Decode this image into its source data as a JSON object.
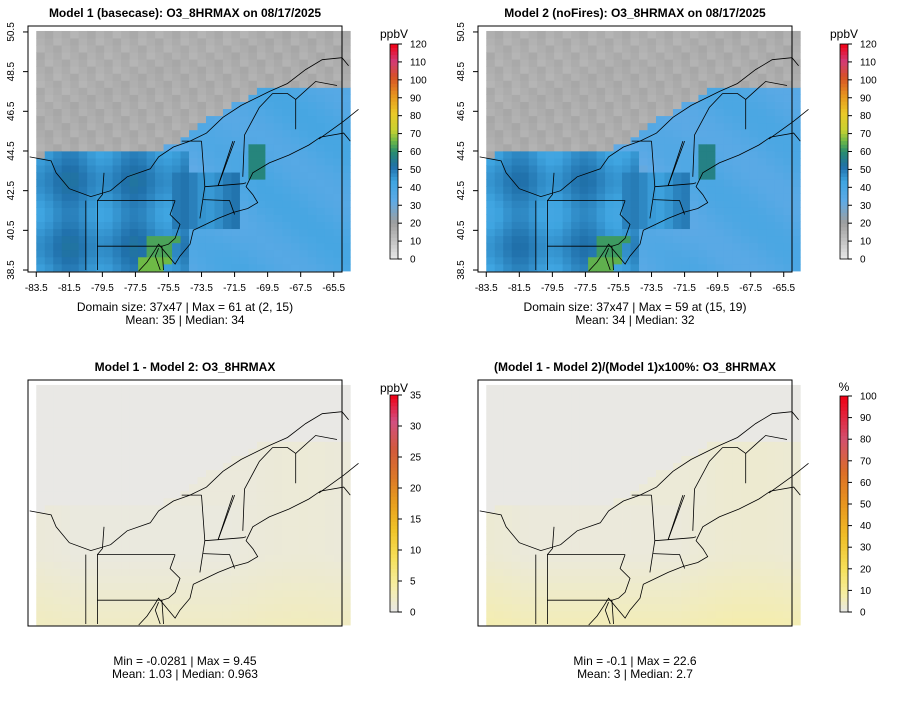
{
  "chart_data": [
    {
      "type": "heatmap",
      "title": "Model 1 (basecase): O3_8HRMAX on 08/17/2025",
      "variable": "O3_8HRMAX",
      "date": "08/17/2025",
      "xlabel": "",
      "ylabel": "",
      "xlim": [
        -84,
        -65
      ],
      "ylim": [
        38.4,
        50.8
      ],
      "x_ticks": [
        "-83.5",
        "-81.5",
        "-79.5",
        "-77.5",
        "-75.5",
        "-73.5",
        "-71.5",
        "-69.5",
        "-67.5",
        "-65.5"
      ],
      "y_ticks": [
        "38.5",
        "40.5",
        "42.5",
        "44.5",
        "46.5",
        "48.5",
        "50.5"
      ],
      "colorbar": {
        "unit": "ppbV",
        "min": 0,
        "max": 120,
        "step": 10,
        "labels": [
          "0",
          "10",
          "20",
          "30",
          "40",
          "50",
          "60",
          "70",
          "80",
          "90",
          "100",
          "110",
          "120"
        ]
      },
      "field": "o3",
      "stats_line1": "Domain size: 37x47 | Max = 61 at (2, 15)",
      "stats_line2": "Mean: 35 |  Median: 34",
      "domain_size": "37x47",
      "max": 61,
      "max_at": "(2, 15)",
      "mean": 35,
      "median": 34
    },
    {
      "type": "heatmap",
      "title": "Model 2 (noFires): O3_8HRMAX on 08/17/2025",
      "variable": "O3_8HRMAX",
      "date": "08/17/2025",
      "xlabel": "",
      "ylabel": "",
      "xlim": [
        -84,
        -65
      ],
      "ylim": [
        38.4,
        50.8
      ],
      "x_ticks": [
        "-83.5",
        "-81.5",
        "-79.5",
        "-77.5",
        "-75.5",
        "-73.5",
        "-71.5",
        "-69.5",
        "-67.5",
        "-65.5"
      ],
      "y_ticks": [
        "38.5",
        "40.5",
        "42.5",
        "44.5",
        "46.5",
        "48.5",
        "50.5"
      ],
      "colorbar": {
        "unit": "ppbV",
        "min": 0,
        "max": 120,
        "step": 10,
        "labels": [
          "0",
          "10",
          "20",
          "30",
          "40",
          "50",
          "60",
          "70",
          "80",
          "90",
          "100",
          "110",
          "120"
        ]
      },
      "field": "o3",
      "stats_line1": "Domain size: 37x47 | Max = 59 at (15, 19)",
      "stats_line2": "Mean: 34 |  Median: 32",
      "domain_size": "37x47",
      "max": 59,
      "max_at": "(15, 19)",
      "mean": 34,
      "median": 32
    },
    {
      "type": "heatmap",
      "title": "Model 1 - Model 2: O3_8HRMAX",
      "variable": "O3_8HRMAX",
      "xlim": [
        -84,
        -65
      ],
      "ylim": [
        38.4,
        50.8
      ],
      "colorbar": {
        "unit": "ppbV",
        "min": 0,
        "max": 35,
        "step": 5,
        "labels": [
          "0",
          "5",
          "10",
          "15",
          "20",
          "25",
          "30",
          "35"
        ]
      },
      "field": "diff",
      "stats_line1": "Min = -0.0281 | Max = 9.45",
      "stats_line2": "Mean: 1.03 |  Median: 0.963",
      "min": -0.0281,
      "max": 9.45,
      "mean": 1.03,
      "median": 0.963
    },
    {
      "type": "heatmap",
      "title": "(Model 1 - Model 2)/(Model 1)x100%: O3_8HRMAX",
      "variable": "O3_8HRMAX",
      "xlim": [
        -84,
        -65
      ],
      "ylim": [
        38.4,
        50.8
      ],
      "colorbar": {
        "unit": "%",
        "min": 0,
        "max": 100,
        "step": 10,
        "labels": [
          "0",
          "10",
          "20",
          "30",
          "40",
          "50",
          "60",
          "70",
          "80",
          "90",
          "100"
        ]
      },
      "field": "pct",
      "stats_line1": "Min = -0.1 | Max = 22.6",
      "stats_line2": "Mean: 3 |  Median: 2.7",
      "min": -0.1,
      "max": 22.6,
      "mean": 3,
      "median": 2.7
    }
  ]
}
